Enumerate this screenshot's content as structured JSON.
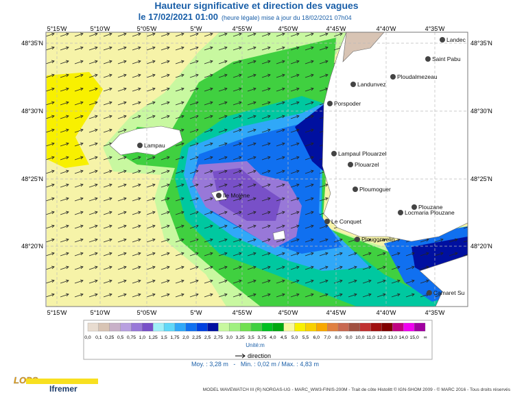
{
  "header": {
    "title": "Hauteur significative et direction des vagues",
    "date": "le 17/02/2021 01:00",
    "note": "(heure légale) mise à jour du 18/02/2021 07h04"
  },
  "map": {
    "lon_ticks": [
      "5°15'W",
      "5°10'W",
      "5°05'W",
      "5°W",
      "4°55'W",
      "4°50'W",
      "4°45'W",
      "4°40'W",
      "4°35'W"
    ],
    "lat_ticks": [
      "48°35'N",
      "48°30'N",
      "48°25'N",
      "48°20'N"
    ],
    "places": [
      "Landec",
      "Saint Pabu",
      "Ploudalmezeau",
      "Landunvez",
      "Porspoder",
      "Lampau",
      "Lampaul Plouarzel",
      "Plouarzel",
      "Ploumoguer",
      "Ile Molène",
      "Plouzane",
      "Locmaria Plouzane",
      "Le Conquet",
      "Plougonvelin",
      "Camaret Su"
    ]
  },
  "legend": {
    "levels": [
      "0,0",
      "0,1",
      "0,25",
      "0,5",
      "0,75",
      "1,0",
      "1,25",
      "1,5",
      "1,75",
      "2,0",
      "2,25",
      "2,5",
      "2,75",
      "3,0",
      "3,25",
      "3,5",
      "3,75",
      "4,0",
      "4,5",
      "5,0",
      "5,5",
      "6,0",
      "7,0",
      "8,0",
      "9,0",
      "10,0",
      "11,0",
      "12,0",
      "13,0",
      "14,0",
      "15,0",
      "∞"
    ],
    "colors": [
      "#e8dcd0",
      "#d8c4b4",
      "#c8b0c8",
      "#b8a0e0",
      "#9878d8",
      "#7850c8",
      "#a0f0f8",
      "#60d8f8",
      "#30a8f8",
      "#1070f0",
      "#0040e0",
      "#0010a0",
      "#c8f8a0",
      "#a0f080",
      "#70e050",
      "#40d040",
      "#00c020",
      "#00a810",
      "#f8f8a0",
      "#f8f000",
      "#f8d000",
      "#f8a800",
      "#e08040",
      "#c86850",
      "#a05040",
      "#c03030",
      "#a01010",
      "#800000",
      "#c00080",
      "#f000f0",
      "#a000a0"
    ],
    "unit": "Unité:m",
    "direction": "direction",
    "stats": "Moy. : 3,28 m   -   Min. : 0,02 m / Max. : 4,83 m"
  },
  "footer": {
    "credit": "MODEL WAVEWATCH III (R) NORGAS-UG - MARC_WW3-FINIS-200M - Trait de côte Histolitt © IGN-SHOM 2009 - © MARC 2016 - Tous droits réservés",
    "logos": [
      "LOPS",
      "Ifremer"
    ]
  }
}
